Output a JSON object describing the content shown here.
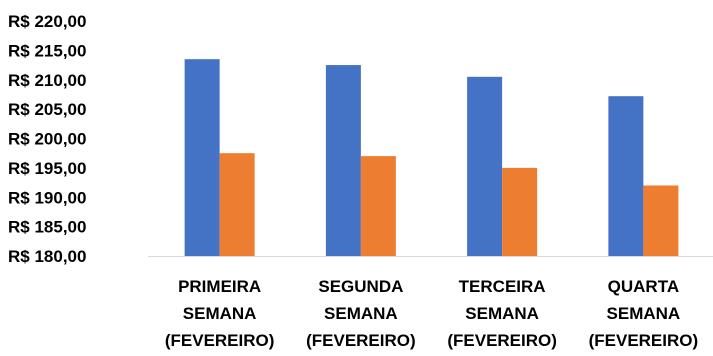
{
  "chart_data": {
    "type": "bar",
    "title": "",
    "xlabel": "",
    "ylabel": "",
    "categories": [
      [
        "PRIMEIRA",
        "SEMANA",
        "(FEVEREIRO)"
      ],
      [
        "SEGUNDA",
        "SEMANA",
        "(FEVEREIRO)"
      ],
      [
        "TERCEIRA",
        "SEMANA",
        "(FEVEREIRO)"
      ],
      [
        "QUARTA",
        "SEMANA",
        "(FEVEREIRO)"
      ]
    ],
    "series": [
      {
        "values": [
          213.5,
          212.5,
          210.5,
          207.2
        ],
        "color": "#4472C4"
      },
      {
        "values": [
          197.5,
          197.0,
          195.0,
          192.0
        ],
        "color": "#ED7D31"
      }
    ],
    "ylim": [
      180,
      220
    ],
    "yticks": [
      180,
      185,
      190,
      195,
      200,
      205,
      210,
      215,
      220
    ],
    "ytick_labels": [
      "R$ 180,00",
      "R$ 185,00",
      "R$ 190,00",
      "R$ 195,00",
      "R$ 200,00",
      "R$ 205,00",
      "R$ 210,00",
      "R$ 215,00",
      "R$ 220,00"
    ],
    "grid": false,
    "axis_line_color": "#D9D9D9"
  }
}
